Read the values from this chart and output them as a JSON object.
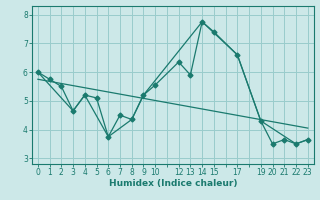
{
  "xlabel": "Humidex (Indice chaleur)",
  "bg_color": "#cce8e8",
  "grid_color": "#99cccc",
  "line_color": "#1a7a6e",
  "ylim": [
    2.8,
    8.3
  ],
  "xlim": [
    -0.5,
    23.5
  ],
  "yticks": [
    3,
    4,
    5,
    6,
    7,
    8
  ],
  "line1_x": [
    0,
    1,
    2,
    3,
    4,
    5,
    6,
    7,
    8,
    9,
    10,
    12,
    13,
    14,
    15,
    17,
    19,
    20,
    21,
    22,
    23
  ],
  "line1_y": [
    6.0,
    5.75,
    5.5,
    4.65,
    5.2,
    5.1,
    3.75,
    4.5,
    4.35,
    5.2,
    5.55,
    6.35,
    5.9,
    7.75,
    7.4,
    6.6,
    4.3,
    3.5,
    3.65,
    3.5,
    3.65
  ],
  "line2_x": [
    0,
    3,
    4,
    6,
    8,
    9,
    14,
    17,
    19,
    22,
    23
  ],
  "line2_y": [
    6.0,
    4.65,
    5.2,
    3.75,
    4.35,
    5.2,
    7.75,
    6.6,
    4.3,
    3.5,
    3.65
  ],
  "line3_x": [
    0,
    23
  ],
  "line3_y": [
    5.75,
    4.05
  ]
}
